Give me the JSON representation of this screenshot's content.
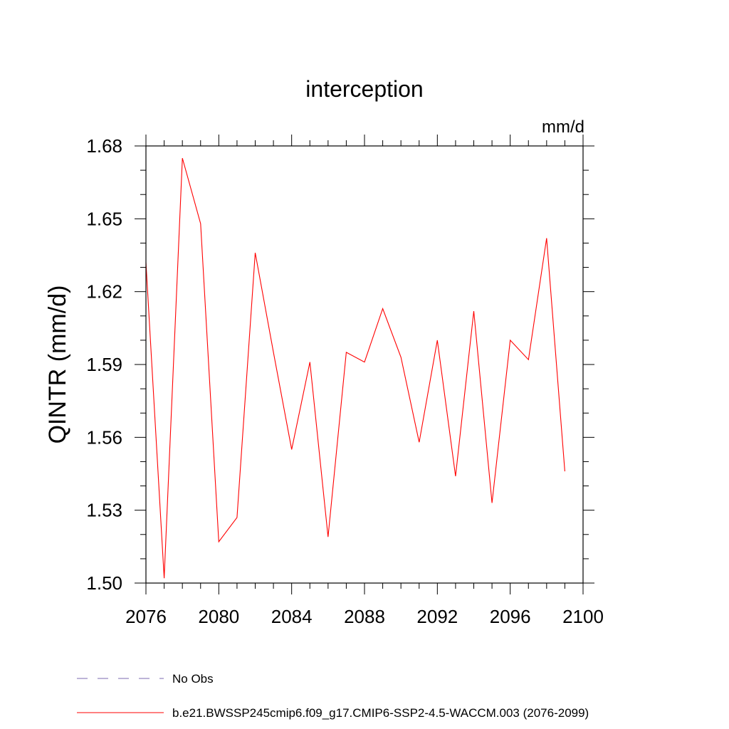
{
  "chart_data": {
    "type": "line",
    "title": "interception",
    "units_label": "mm/d",
    "ylabel": "QINTR  (mm/d)",
    "xlabel": "",
    "xlim": [
      2076,
      2100
    ],
    "ylim": [
      1.5,
      1.68
    ],
    "xticks": [
      2076,
      2080,
      2084,
      2088,
      2092,
      2096,
      2100
    ],
    "xtick_labels": [
      "2076",
      "2080",
      "2084",
      "2088",
      "2092",
      "2096",
      "2100"
    ],
    "yticks": [
      1.5,
      1.53,
      1.56,
      1.59,
      1.62,
      1.65,
      1.68
    ],
    "ytick_labels": [
      "1.50",
      "1.53",
      "1.56",
      "1.59",
      "1.62",
      "1.65",
      "1.68"
    ],
    "grid": false,
    "series": [
      {
        "name": "b.e21.BWSSP245cmip6.f09_g17.CMIP6-SSP2-4.5-WACCM.003 (2076-2099)",
        "color": "#ff0000",
        "style": "solid",
        "x": [
          2076,
          2077,
          2078,
          2079,
          2080,
          2081,
          2082,
          2083,
          2084,
          2085,
          2086,
          2087,
          2088,
          2089,
          2090,
          2091,
          2092,
          2093,
          2094,
          2095,
          2096,
          2097,
          2098,
          2099
        ],
        "y": [
          1.632,
          1.502,
          1.675,
          1.648,
          1.517,
          1.527,
          1.636,
          1.595,
          1.555,
          1.591,
          1.519,
          1.595,
          1.591,
          1.613,
          1.593,
          1.558,
          1.6,
          1.544,
          1.612,
          1.533,
          1.6,
          1.592,
          1.642,
          1.546
        ]
      }
    ],
    "legend": [
      {
        "label": "No Obs",
        "color": "#7b68b0",
        "style": "dashed"
      },
      {
        "label": "b.e21.BWSSP245cmip6.f09_g17.CMIP6-SSP2-4.5-WACCM.003 (2076-2099)",
        "color": "#ff0000",
        "style": "solid"
      }
    ]
  }
}
